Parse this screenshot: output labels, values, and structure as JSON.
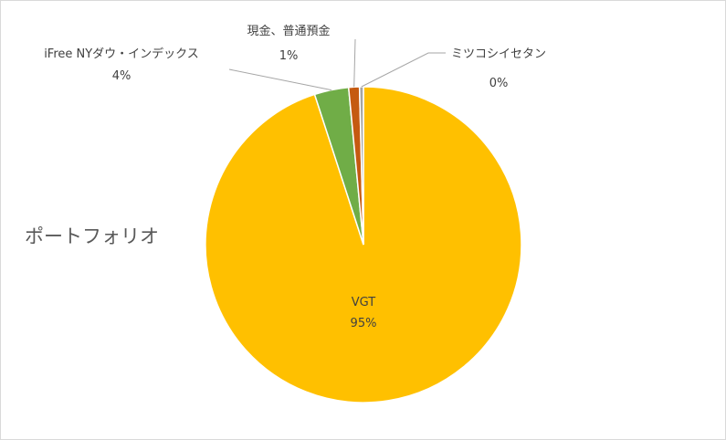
{
  "chart_data": {
    "type": "pie",
    "title": "ポートフォリオ",
    "legend": "none",
    "slices": [
      {
        "label": "VGT",
        "value": 95,
        "percent_label": "95%",
        "color": "#FFC000"
      },
      {
        "label": "iFree NYダウ・インデックス",
        "value": 3.5,
        "percent_label": "4%",
        "color": "#70AD47"
      },
      {
        "label": "現金、普通預金",
        "value": 1.1,
        "percent_label": "1%",
        "color": "#C55A11"
      },
      {
        "label": "ミツコシイセタン",
        "value": 0.4,
        "percent_label": "0%",
        "color": "#A5A5A5"
      }
    ]
  }
}
